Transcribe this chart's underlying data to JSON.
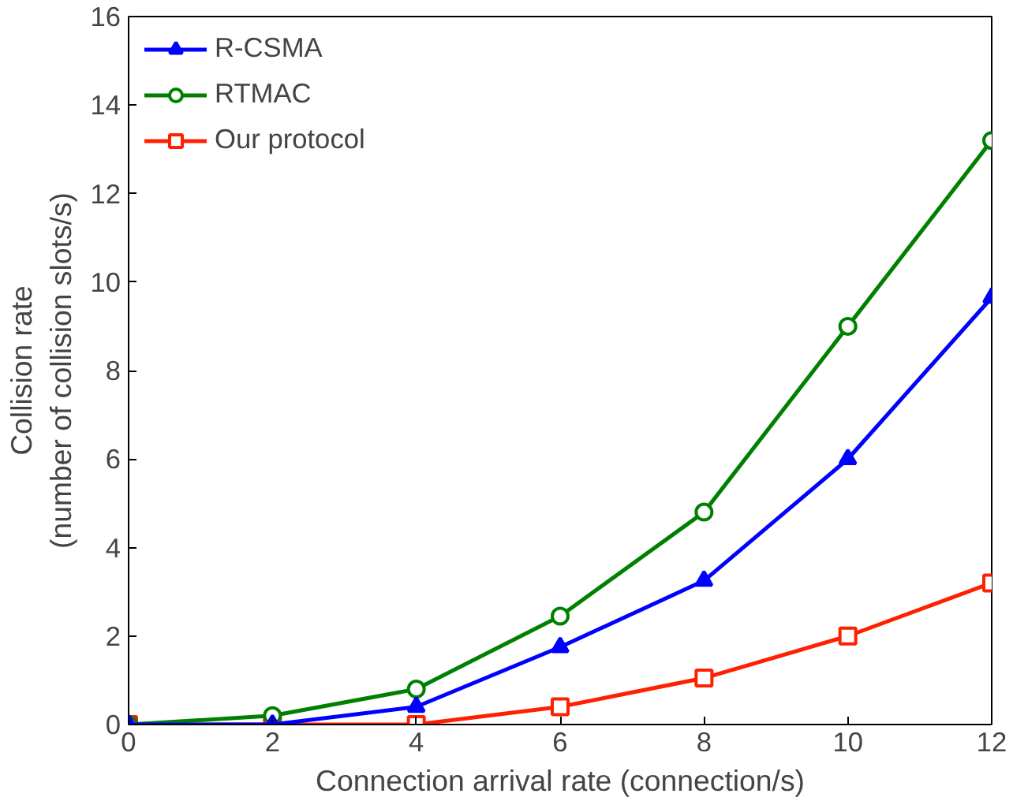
{
  "chart_data": {
    "type": "line",
    "xlabel": "Connection arrival rate (connection/s)",
    "ylabel": "Collision rate\n(number of collision slots/s)",
    "x": [
      0,
      2,
      4,
      6,
      8,
      10,
      12
    ],
    "series": [
      {
        "name": "R-CSMA",
        "color": "#0000ff",
        "marker": "triangle",
        "values": [
          0,
          0,
          0.4,
          1.75,
          3.25,
          6.0,
          9.65
        ]
      },
      {
        "name": "RTMAC",
        "color": "#008000",
        "marker": "circle",
        "values": [
          0,
          0.2,
          0.8,
          2.45,
          4.8,
          9.0,
          13.2
        ]
      },
      {
        "name": "Our protocol",
        "color": "#ff2000",
        "marker": "square",
        "values": [
          0,
          0,
          0,
          0.4,
          1.05,
          2.0,
          3.2
        ]
      }
    ],
    "xlim": [
      0,
      12
    ],
    "ylim": [
      0,
      16
    ],
    "xticks": [
      0,
      2,
      4,
      6,
      8,
      10,
      12
    ],
    "yticks": [
      0,
      2,
      4,
      6,
      8,
      10,
      12,
      14,
      16
    ],
    "grid": false,
    "legend": "top left",
    "line_style": "solid"
  }
}
